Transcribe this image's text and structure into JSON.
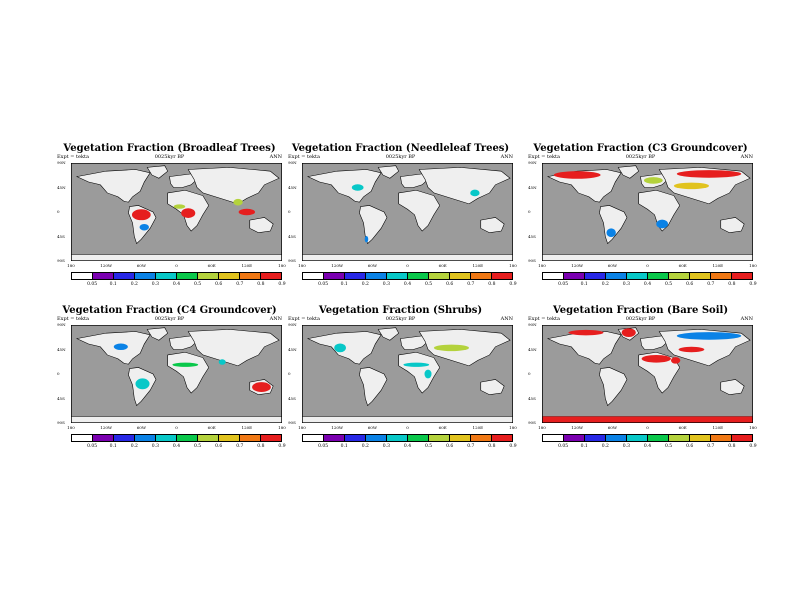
{
  "colors": {
    "ocean": "#9b9b9b",
    "land": "#efefef",
    "palette": [
      "#ffffff",
      "#7a00b0",
      "#2828e6",
      "#0a82e6",
      "#08c8c8",
      "#0ac84b",
      "#b4d23c",
      "#e1c31e",
      "#f07814",
      "#e61e1e"
    ]
  },
  "chart_data": [
    {
      "type": "heatmap",
      "name": "panel-broadleaf",
      "title": "Vegetation Fraction (Broadleaf Trees)",
      "experiment": "Expt = tekta",
      "period": "0025kyr BP",
      "season": "ANN",
      "lat_ticks": [
        "90N",
        "45N",
        "0",
        "45S",
        "90S"
      ],
      "lon_ticks": [
        "180",
        "120W",
        "60W",
        "0",
        "60E",
        "120E",
        "180"
      ],
      "colorbar_levels": [
        "0.05",
        "0.1",
        "0.2",
        "0.3",
        "0.4",
        "0.5",
        "0.6",
        "0.7",
        "0.8",
        "0.9"
      ],
      "regions": [
        {
          "region": "Amazon",
          "value": 0.85
        },
        {
          "region": "Congo",
          "value": 0.85
        },
        {
          "region": "West Africa",
          "value": 0.5
        },
        {
          "region": "Maritime Continent",
          "value": 0.85
        },
        {
          "region": "Southeast Asia",
          "value": 0.55
        },
        {
          "region": "Southeast South America",
          "value": 0.25
        }
      ]
    },
    {
      "type": "heatmap",
      "name": "panel-needleleaf",
      "title": "Vegetation Fraction (Needleleaf Trees)",
      "experiment": "Expt = tekta",
      "period": "0025kyr BP",
      "season": "ANN",
      "lat_ticks": [
        "90N",
        "45N",
        "0",
        "45S",
        "90S"
      ],
      "lon_ticks": [
        "180",
        "120W",
        "60W",
        "0",
        "60E",
        "120E",
        "180"
      ],
      "colorbar_levels": [
        "0.05",
        "0.1",
        "0.2",
        "0.3",
        "0.4",
        "0.5",
        "0.6",
        "0.7",
        "0.8",
        "0.9"
      ],
      "regions": [
        {
          "region": "Eastern North America",
          "value": 0.35
        },
        {
          "region": "East China",
          "value": 0.35
        },
        {
          "region": "Southern Chile",
          "value": 0.2
        }
      ]
    },
    {
      "type": "heatmap",
      "name": "panel-c3",
      "title": "Vegetation Fraction (C3 Groundcover)",
      "experiment": "Expt = tekta",
      "period": "0025kyr BP",
      "season": "ANN",
      "lat_ticks": [
        "90N",
        "45N",
        "0",
        "45S",
        "90S"
      ],
      "lon_ticks": [
        "180",
        "120W",
        "60W",
        "0",
        "60E",
        "120E",
        "180"
      ],
      "colorbar_levels": [
        "0.05",
        "0.1",
        "0.2",
        "0.3",
        "0.4",
        "0.5",
        "0.6",
        "0.7",
        "0.8",
        "0.9"
      ],
      "regions": [
        {
          "region": "North American Arctic",
          "value": 0.85
        },
        {
          "region": "Siberia",
          "value": 0.85
        },
        {
          "region": "Central Asia",
          "value": 0.6
        },
        {
          "region": "Europe",
          "value": 0.5
        },
        {
          "region": "Southern Africa",
          "value": 0.2
        },
        {
          "region": "Southern South America",
          "value": 0.25
        }
      ]
    },
    {
      "type": "heatmap",
      "name": "panel-c4",
      "title": "Vegetation Fraction (C4 Groundcover)",
      "experiment": "Expt = tekta",
      "period": "0025kyr BP",
      "season": "ANN",
      "lat_ticks": [
        "90N",
        "45N",
        "0",
        "45S",
        "90S"
      ],
      "lon_ticks": [
        "180",
        "120W",
        "60W",
        "0",
        "60E",
        "120E",
        "180"
      ],
      "colorbar_levels": [
        "0.05",
        "0.1",
        "0.2",
        "0.3",
        "0.4",
        "0.5",
        "0.6",
        "0.7",
        "0.8",
        "0.9"
      ],
      "regions": [
        {
          "region": "Sahel",
          "value": 0.4
        },
        {
          "region": "Australia",
          "value": 0.85
        },
        {
          "region": "South America",
          "value": 0.3
        },
        {
          "region": "North American plains",
          "value": 0.2
        },
        {
          "region": "India",
          "value": 0.3
        }
      ]
    },
    {
      "type": "heatmap",
      "name": "panel-shrubs",
      "title": "Vegetation Fraction (Shrubs)",
      "experiment": "Expt = tekta",
      "period": "0025kyr BP",
      "season": "ANN",
      "lat_ticks": [
        "90N",
        "45N",
        "0",
        "45S",
        "90S"
      ],
      "lon_ticks": [
        "180",
        "120W",
        "60W",
        "0",
        "60E",
        "120E",
        "180"
      ],
      "colorbar_levels": [
        "0.05",
        "0.1",
        "0.2",
        "0.3",
        "0.4",
        "0.5",
        "0.6",
        "0.7",
        "0.8",
        "0.9"
      ],
      "regions": [
        {
          "region": "Central Asia",
          "value": 0.5
        },
        {
          "region": "Western North America",
          "value": 0.35
        },
        {
          "region": "Sahel",
          "value": 0.3
        },
        {
          "region": "East Africa",
          "value": 0.3
        }
      ]
    },
    {
      "type": "heatmap",
      "name": "panel-baresoil",
      "title": "Vegetation Fraction (Bare Soil)",
      "experiment": "Expt = tekta",
      "period": "0025kyr BP",
      "season": "ANN",
      "lat_ticks": [
        "90N",
        "45N",
        "0",
        "45S",
        "90S"
      ],
      "lon_ticks": [
        "180",
        "120W",
        "60W",
        "0",
        "60E",
        "120E",
        "180"
      ],
      "colorbar_levels": [
        "0.05",
        "0.1",
        "0.2",
        "0.3",
        "0.4",
        "0.5",
        "0.6",
        "0.7",
        "0.8",
        "0.9"
      ],
      "regions": [
        {
          "region": "Sahara",
          "value": 0.95
        },
        {
          "region": "Arabia",
          "value": 0.95
        },
        {
          "region": "Central Asian deserts",
          "value": 0.9
        },
        {
          "region": "Greenland",
          "value": 0.95
        },
        {
          "region": "Antarctica",
          "value": 0.95
        },
        {
          "region": "Canadian Arctic",
          "value": 0.9
        },
        {
          "region": "Siberia",
          "value": 0.2
        }
      ]
    }
  ]
}
